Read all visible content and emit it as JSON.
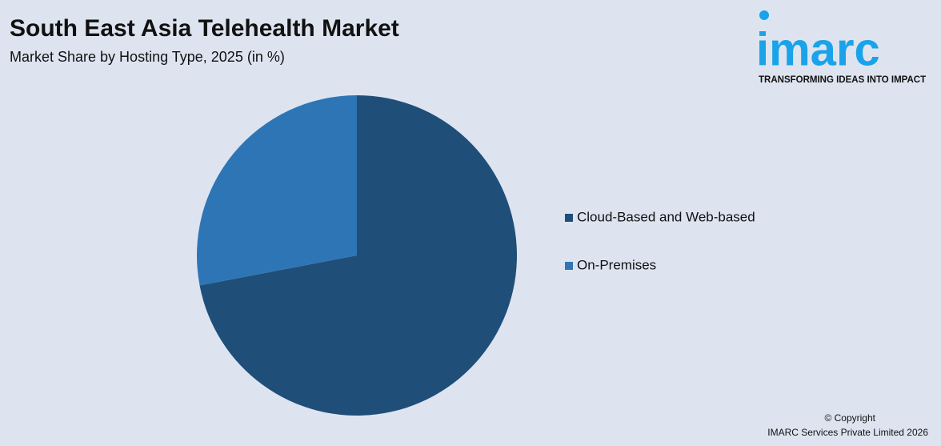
{
  "chart_data": {
    "type": "pie",
    "title": "South East Asia Telehealth Market",
    "subtitle": "Market Share by Hosting Type, 2025 (in %)",
    "categories": [
      "Cloud-Based and Web-based",
      "On-Premises"
    ],
    "values": [
      72,
      28
    ],
    "colors": [
      "#1f4e79",
      "#2e75b6"
    ],
    "legend": "right"
  },
  "logo": {
    "name": "imarc",
    "tagline": "TRANSFORMING IDEAS INTO IMPACT"
  },
  "footer": {
    "copyright": "© Copyright",
    "company": "IMARC Services Private Limited 2026"
  }
}
